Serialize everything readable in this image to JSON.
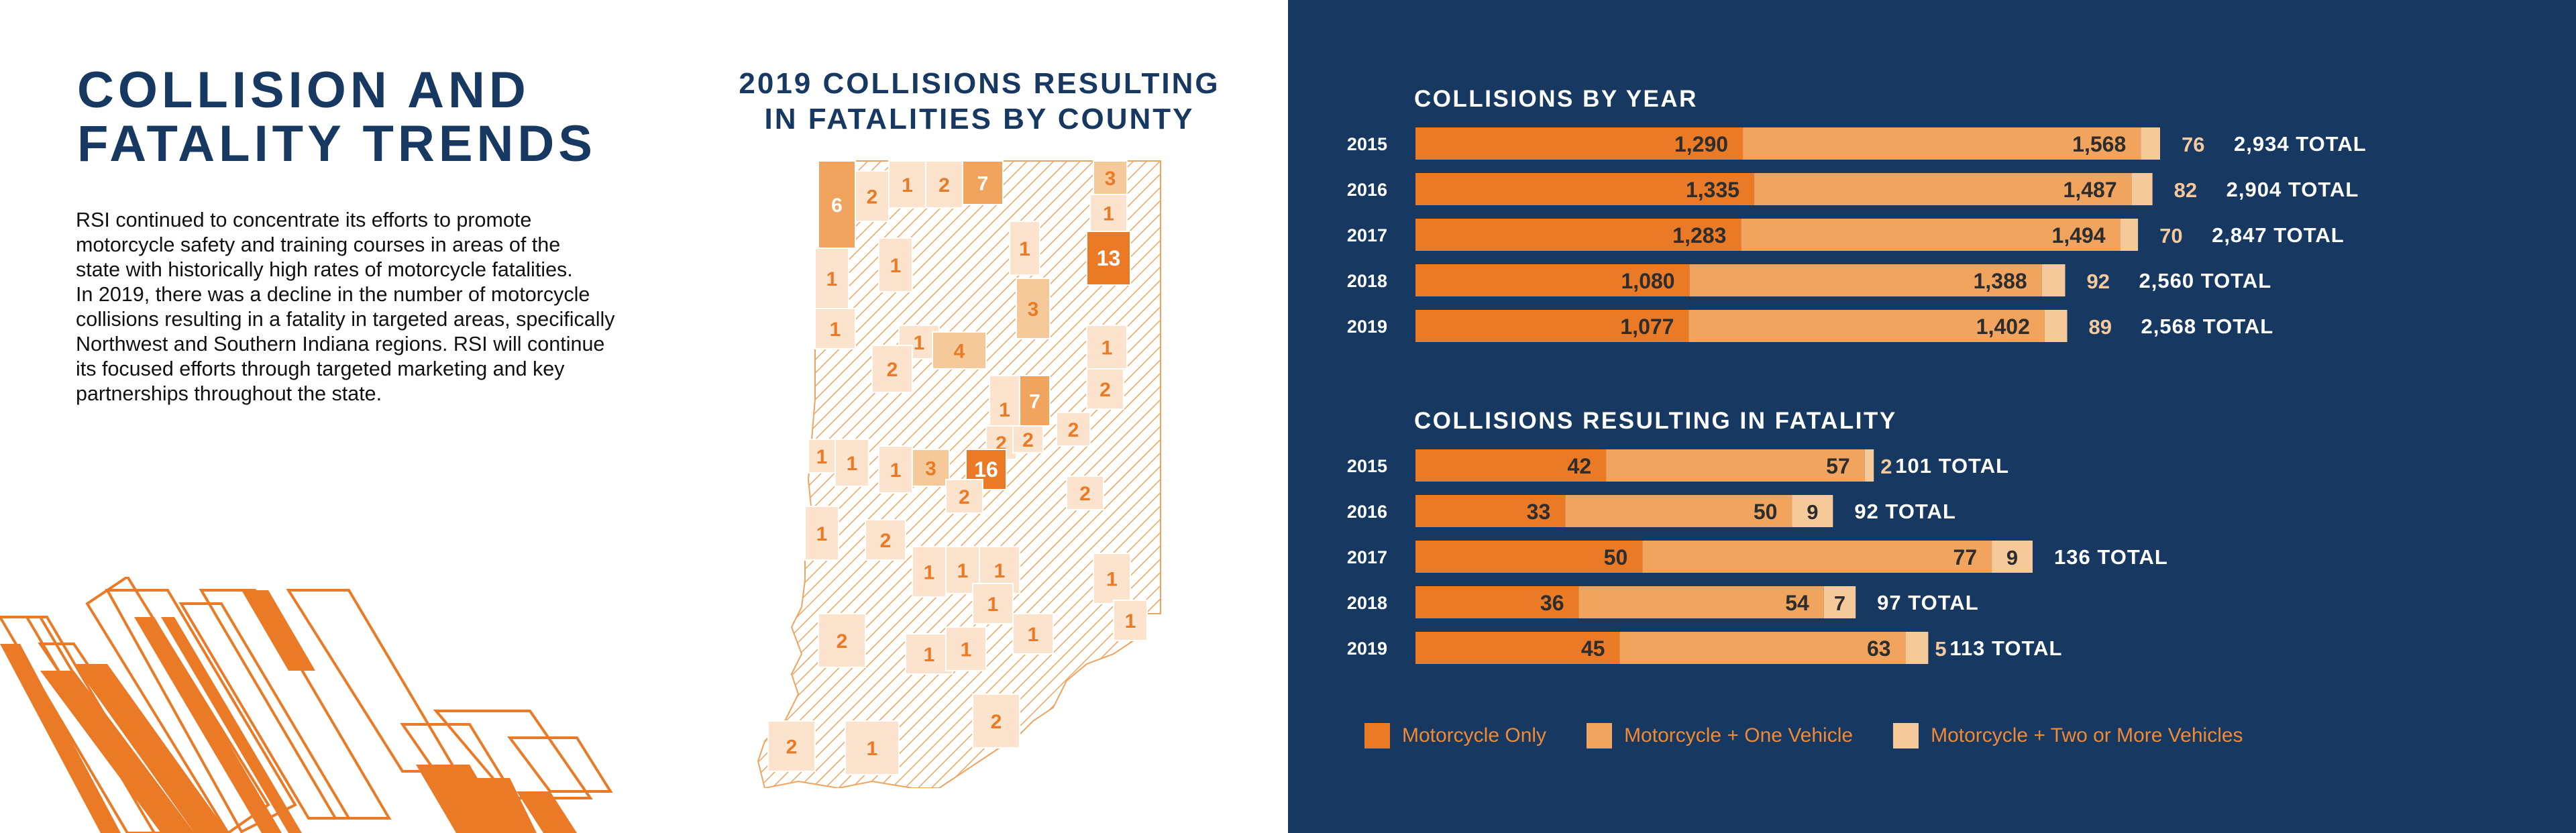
{
  "title": "COLLISION AND\nFATALITY TRENDS",
  "body": "RSI continued to concentrate its efforts to promote\nmotorcycle safety and training courses in areas of the\nstate with historically high rates of motorcycle fatalities.\nIn 2019, there was a decline in the number of motorcycle\ncollisions resulting in a fatality in targeted areas, specifically\nNorthwest and Southern Indiana regions. RSI will continue\nits focused efforts through targeted marketing and key\npartnerships throughout the state.",
  "map": {
    "title": "2019 COLLISIONS RESULTING\nIN FATALITIES BY COUNTY",
    "counties": [
      {
        "value": "6"
      },
      {
        "value": "2"
      },
      {
        "value": "1"
      },
      {
        "value": "2"
      },
      {
        "value": "7"
      },
      {
        "value": "3"
      },
      {
        "value": "1"
      },
      {
        "value": "1"
      },
      {
        "value": "13"
      },
      {
        "value": "1"
      },
      {
        "value": "1"
      },
      {
        "value": "3"
      },
      {
        "value": "1"
      },
      {
        "value": "1"
      },
      {
        "value": "2"
      },
      {
        "value": "1"
      },
      {
        "value": "4"
      },
      {
        "value": "7"
      },
      {
        "value": "2"
      },
      {
        "value": "2"
      },
      {
        "value": "1"
      },
      {
        "value": "2"
      },
      {
        "value": "2"
      },
      {
        "value": "1"
      },
      {
        "value": "1"
      },
      {
        "value": "1"
      },
      {
        "value": "3"
      },
      {
        "value": "16"
      },
      {
        "value": "2"
      },
      {
        "value": "2"
      },
      {
        "value": "1"
      },
      {
        "value": "2"
      },
      {
        "value": "1"
      },
      {
        "value": "1"
      },
      {
        "value": "1"
      },
      {
        "value": "1"
      },
      {
        "value": "1"
      },
      {
        "value": "1"
      },
      {
        "value": "1"
      },
      {
        "value": "2"
      },
      {
        "value": "1"
      },
      {
        "value": "1"
      },
      {
        "value": "2"
      },
      {
        "value": "2"
      },
      {
        "value": "1"
      }
    ]
  },
  "chart_data": [
    {
      "type": "bar",
      "title": "COLLISIONS BY YEAR",
      "stacked": true,
      "orientation": "horizontal",
      "categories": [
        "2015",
        "2016",
        "2017",
        "2018",
        "2019"
      ],
      "series": [
        {
          "name": "Motorcycle Only",
          "values": [
            1290,
            1335,
            1283,
            1080,
            1077
          ]
        },
        {
          "name": "Motorcycle + One Vehicle",
          "values": [
            1568,
            1487,
            1494,
            1388,
            1402
          ]
        },
        {
          "name": "Motorcycle + Two or More Vehicles",
          "values": [
            76,
            82,
            70,
            92,
            89
          ]
        }
      ],
      "value_labels": [
        [
          "1,290",
          "1,568",
          "76"
        ],
        [
          "1,335",
          "1,487",
          "82"
        ],
        [
          "1,283",
          "1,494",
          "70"
        ],
        [
          "1,080",
          "1,388",
          "92"
        ],
        [
          "1,077",
          "1,402",
          "89"
        ]
      ],
      "totals": [
        "2,934 TOTAL",
        "2,904 TOTAL",
        "2,847 TOTAL",
        "2,560 TOTAL",
        "2,568 TOTAL"
      ]
    },
    {
      "type": "bar",
      "title": "COLLISIONS RESULTING IN FATALITY",
      "stacked": true,
      "orientation": "horizontal",
      "categories": [
        "2015",
        "2016",
        "2017",
        "2018",
        "2019"
      ],
      "series": [
        {
          "name": "Motorcycle Only",
          "values": [
            42,
            33,
            50,
            36,
            45
          ]
        },
        {
          "name": "Motorcycle + One Vehicle",
          "values": [
            57,
            50,
            77,
            54,
            63
          ]
        },
        {
          "name": "Motorcycle + Two or More Vehicles",
          "values": [
            2,
            9,
            9,
            7,
            5
          ]
        }
      ],
      "value_labels": [
        [
          "42",
          "57",
          "2"
        ],
        [
          "33",
          "50",
          "9"
        ],
        [
          "50",
          "77",
          "9"
        ],
        [
          "36",
          "54",
          "7"
        ],
        [
          "45",
          "63",
          "5"
        ]
      ],
      "totals": [
        "101 TOTAL",
        "92 TOTAL",
        "136 TOTAL",
        "97 TOTAL",
        "113 TOTAL"
      ]
    }
  ],
  "legend": [
    {
      "label": "Motorcycle Only",
      "color": "#ea7a26"
    },
    {
      "label": "Motorcycle + One Vehicle",
      "color": "#f0a45e"
    },
    {
      "label": "Motorcycle + Two or More Vehicles",
      "color": "#f6c99a"
    }
  ],
  "colors": {
    "navy": "#163861",
    "orange": "#ea7a26",
    "medium": "#f0a45e",
    "light": "#f6c99a",
    "pale": "#fbe3cd"
  }
}
